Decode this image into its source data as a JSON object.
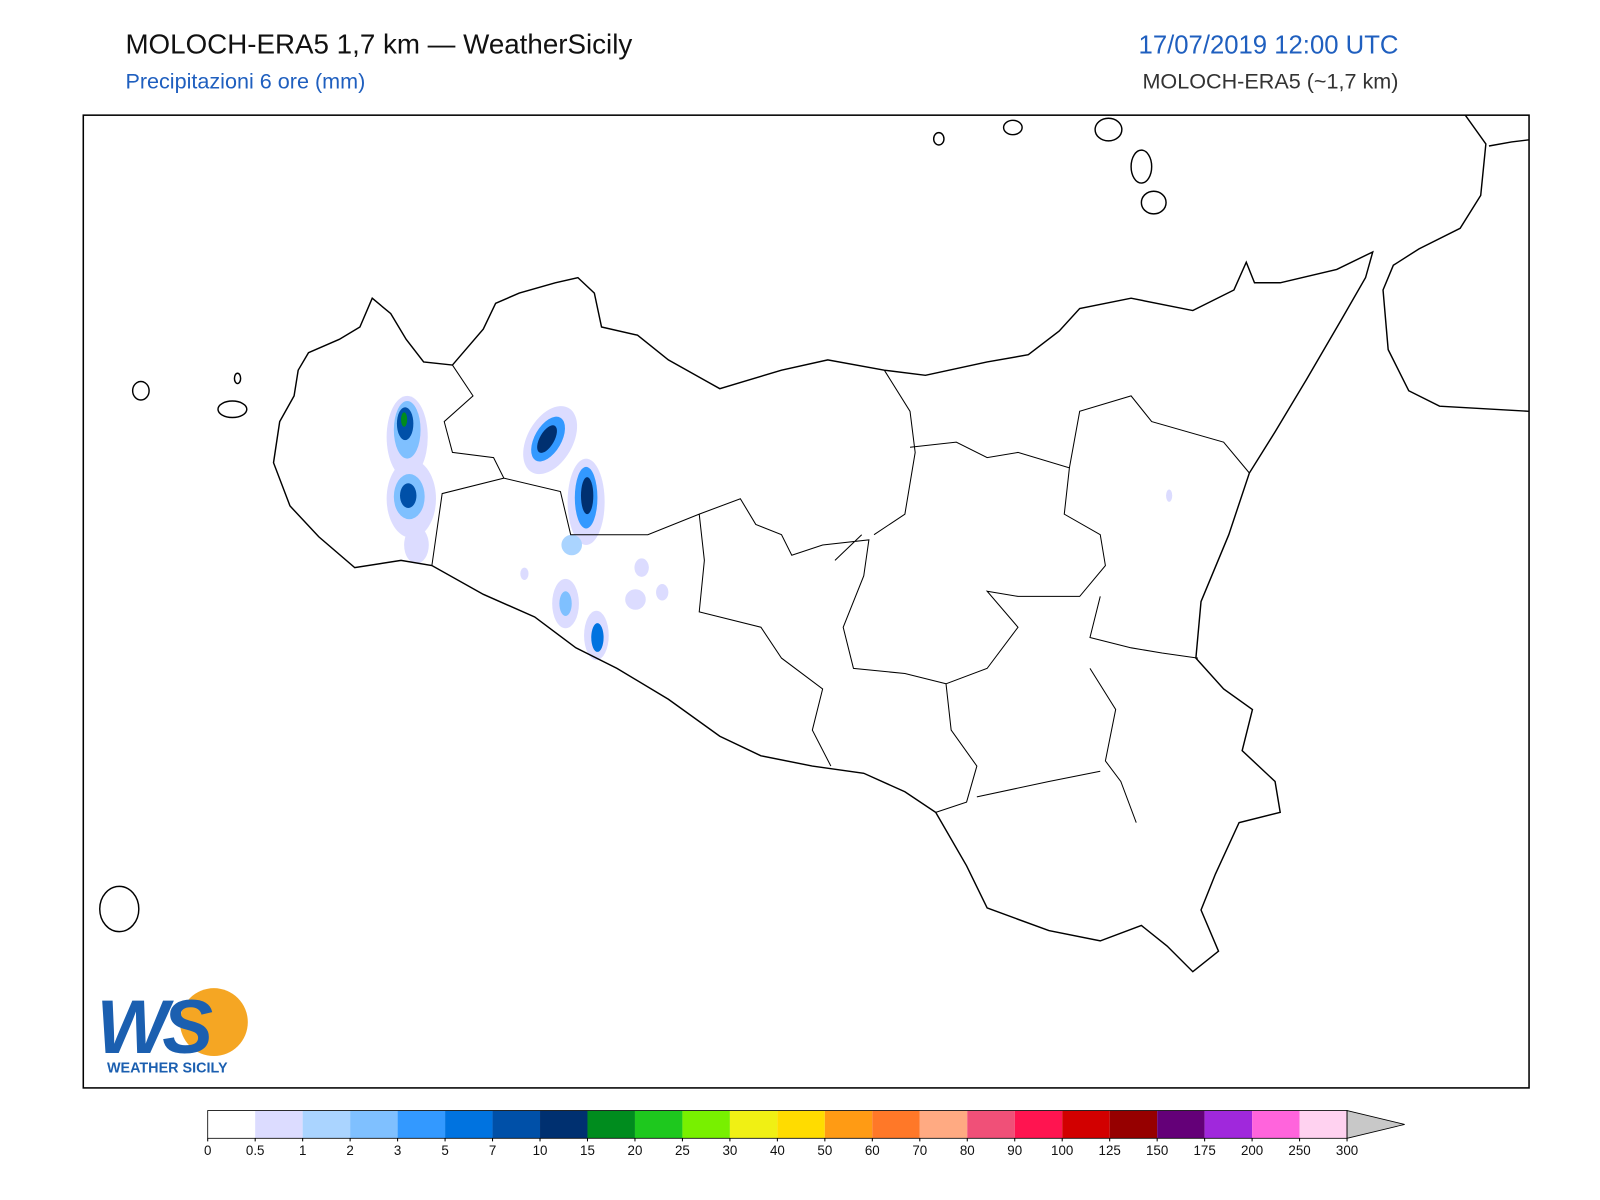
{
  "header": {
    "title": "MOLOCH-ERA5 1,7 km — WeatherSicily",
    "subtitle": "Precipitazioni 6 ore (mm)",
    "datetime": "17/07/2019 12:00 UTC",
    "model": "MOLOCH-ERA5 (~1,7 km)"
  },
  "logo": {
    "letters": "WS",
    "name": "WEATHER SICILY"
  },
  "colorbar": {
    "levels": [
      0,
      0.5,
      1,
      2,
      3,
      5,
      7,
      10,
      15,
      20,
      25,
      30,
      40,
      50,
      60,
      70,
      80,
      90,
      100,
      125,
      150,
      175,
      200,
      250,
      300
    ],
    "colors": [
      "#ffffff",
      "#dcdcff",
      "#aad4ff",
      "#7fc0ff",
      "#3399ff",
      "#0073e0",
      "#0050a8",
      "#003070",
      "#008c1e",
      "#1ec81e",
      "#78f000",
      "#f0f014",
      "#ffdc00",
      "#ff9b14",
      "#ff7828",
      "#ffaa82",
      "#f05078",
      "#ff1450",
      "#d20000",
      "#960000",
      "#640078",
      "#a028dc",
      "#ff64dc",
      "#ffd2f0"
    ],
    "extend_color": "#c8c8c8"
  }
}
